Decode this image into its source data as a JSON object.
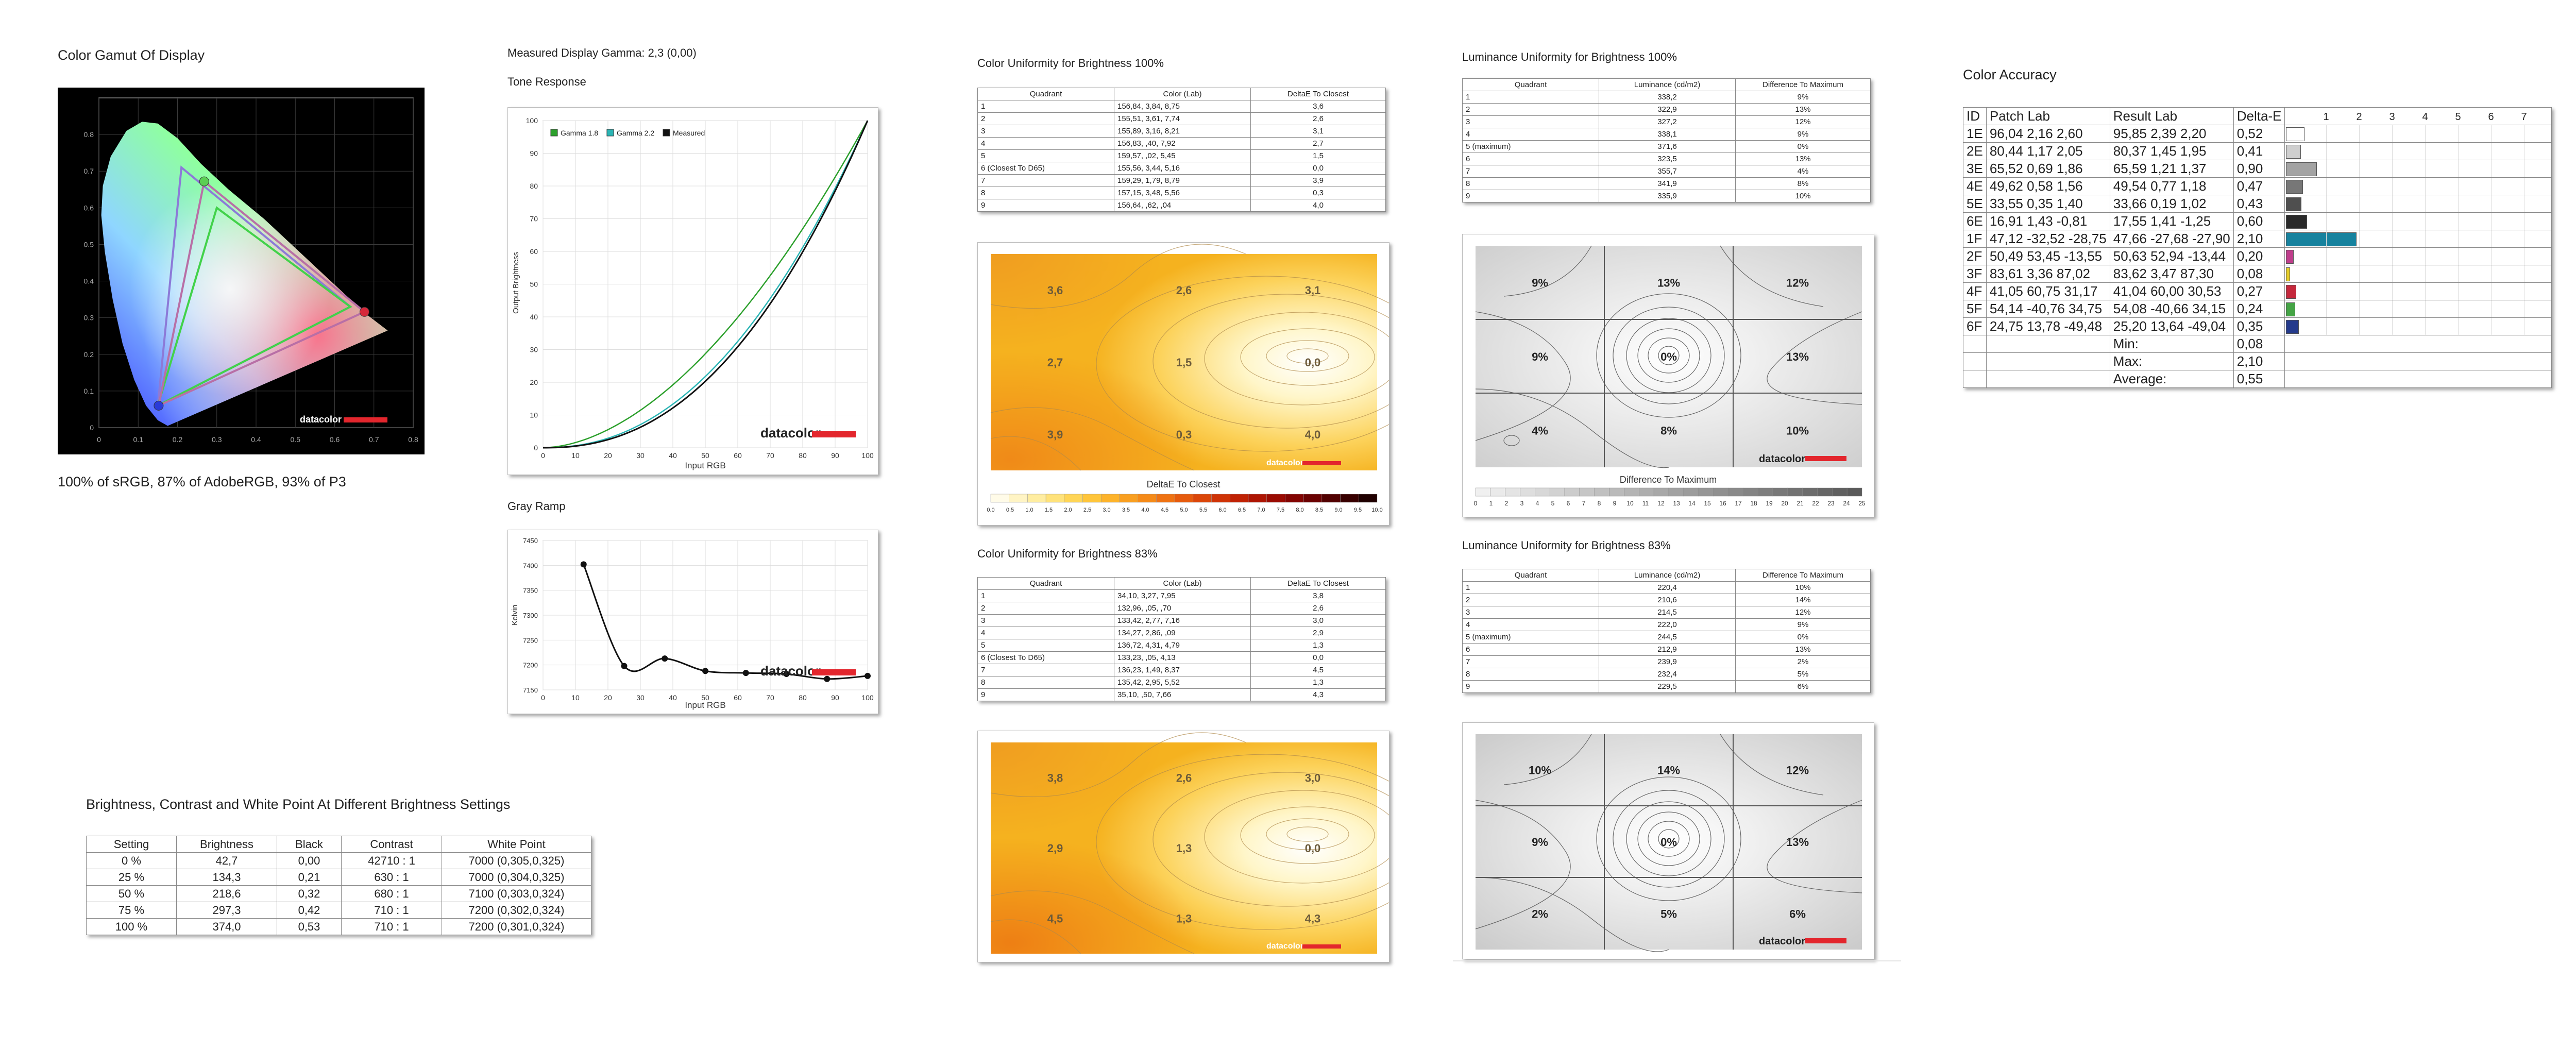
{
  "gamut": {
    "title": "Color Gamut Of Display",
    "summary": "100% of sRGB, 87% of AdobeRGB, 93% of P3",
    "x_ticks": [
      "0",
      "0.1",
      "0.2",
      "0.3",
      "0.4",
      "0.5",
      "0.6",
      "0.7",
      "0.8"
    ],
    "y_ticks": [
      "0",
      "0.1",
      "0.2",
      "0.3",
      "0.4",
      "0.5",
      "0.6",
      "0.7",
      "0.8"
    ],
    "logo": "datacolor"
  },
  "gamma": {
    "title": "Measured Display Gamma: 2,3 (0,00)"
  },
  "tone": {
    "title": "Tone Response",
    "xlabel": "Input RGB",
    "ylabel": "Output Brightness",
    "legend": [
      "Gamma 1.8",
      "Gamma 2.2",
      "Measured"
    ],
    "logo": "datacolor"
  },
  "gray": {
    "title": "Gray Ramp",
    "xlabel": "Input RGB",
    "ylabel": "Kelvin",
    "logo": "datacolor"
  },
  "bct": {
    "title": "Brightness, Contrast and White Point At Different Brightness Settings",
    "headers": [
      "Setting",
      "Brightness",
      "Black",
      "Contrast",
      "White Point"
    ],
    "rows": [
      [
        "0 %",
        "42,7",
        "0,00",
        "42710 : 1",
        "7000 (0,305,0,325)"
      ],
      [
        "25 %",
        "134,3",
        "0,21",
        "630 : 1",
        "7000 (0,304,0,325)"
      ],
      [
        "50 %",
        "218,6",
        "0,32",
        "680 : 1",
        "7100 (0,303,0,324)"
      ],
      [
        "75 %",
        "297,3",
        "0,42",
        "710 : 1",
        "7200 (0,302,0,324)"
      ],
      [
        "100 %",
        "374,0",
        "0,53",
        "710 : 1",
        "7200 (0,301,0,324)"
      ]
    ]
  },
  "cu100": {
    "title": "Color Uniformity for Brightness 100%",
    "headers": [
      "Quadrant",
      "Color (Lab)",
      "DeltaE To Closest"
    ],
    "rows": [
      [
        "1",
        "156,84,  3,84,  8,75",
        "3,6"
      ],
      [
        "2",
        "155,51,  3,61,  7,74",
        "2,6"
      ],
      [
        "3",
        "155,89,  3,16,  8,21",
        "3,1"
      ],
      [
        "4",
        "156,83,  ,40,  7,92",
        "2,7"
      ],
      [
        "5",
        "159,57,  ,02,  5,45",
        "1,5"
      ],
      [
        "6 (Closest To D65)",
        "155,56,  3,44,  5,16",
        "0,0"
      ],
      [
        "7",
        "159,29,  1,79,  8,79",
        "3,9"
      ],
      [
        "8",
        "157,15,  3,48,  5,56",
        "0,3"
      ],
      [
        "9",
        "156,64,  ,62,  ,04",
        "4,0"
      ]
    ],
    "values": [
      "3,6",
      "2,6",
      "3,1",
      "2,7",
      "1,5",
      "0,0",
      "3,9",
      "0,3",
      "4,0"
    ],
    "legend_title": "DeltaE To Closest",
    "scale": [
      "0.0",
      "0.5",
      "1.0",
      "1.5",
      "2.0",
      "2.5",
      "3.0",
      "3.5",
      "4.0",
      "4.5",
      "5.0",
      "5.5",
      "6.0",
      "6.5",
      "7.0",
      "7.5",
      "8.0",
      "8.5",
      "9.0",
      "9.5",
      "10.0"
    ],
    "logo": "datacolor"
  },
  "cu83": {
    "title": "Color Uniformity for Brightness 83%",
    "headers": [
      "Quadrant",
      "Color (Lab)",
      "DeltaE To Closest"
    ],
    "rows": [
      [
        "1",
        "34,10,  3,27,  7,95",
        "3,8"
      ],
      [
        "2",
        "132,96,  ,05,  ,70",
        "2,6"
      ],
      [
        "3",
        "133,42,  2,77,  7,16",
        "3,0"
      ],
      [
        "4",
        "134,27,  2,86,  ,09",
        "2,9"
      ],
      [
        "5",
        "136,72,  4,31,  4,79",
        "1,3"
      ],
      [
        "6 (Closest To D65)",
        "133,23,  ,05,  4,13",
        "0,0"
      ],
      [
        "7",
        "136,23,  1,49,  8,37",
        "4,5"
      ],
      [
        "8",
        "135,42,  2,95,  5,52",
        "1,3"
      ],
      [
        "9",
        "35,10,  ,50,  7,66",
        "4,3"
      ]
    ],
    "values": [
      "3,8",
      "2,6",
      "3,0",
      "2,9",
      "1,3",
      "0,0",
      "4,5",
      "1,3",
      "4,3"
    ],
    "logo": "datacolor"
  },
  "lu100": {
    "title": "Luminance Uniformity for Brightness 100%",
    "headers": [
      "Quadrant",
      "Luminance (cd/m2)",
      "Difference To Maximum"
    ],
    "rows": [
      [
        "1",
        "338,2",
        "9%"
      ],
      [
        "2",
        "322,9",
        "13%"
      ],
      [
        "3",
        "327,2",
        "12%"
      ],
      [
        "4",
        "338,1",
        "9%"
      ],
      [
        "5 (maximum)",
        "371,6",
        "0%"
      ],
      [
        "6",
        "323,5",
        "13%"
      ],
      [
        "7",
        "355,7",
        "4%"
      ],
      [
        "8",
        "341,9",
        "8%"
      ],
      [
        "9",
        "335,9",
        "10%"
      ]
    ],
    "values": [
      "9%",
      "13%",
      "12%",
      "9%",
      "0%",
      "13%",
      "4%",
      "8%",
      "10%"
    ],
    "legend_title": "Difference To Maximum",
    "scale": [
      "0",
      "1",
      "2",
      "3",
      "4",
      "5",
      "6",
      "7",
      "8",
      "9",
      "10",
      "11",
      "12",
      "13",
      "14",
      "15",
      "16",
      "17",
      "18",
      "19",
      "20",
      "21",
      "22",
      "23",
      "24",
      "25"
    ],
    "logo": "datacolor"
  },
  "lu83": {
    "title": "Luminance Uniformity for Brightness 83%",
    "headers": [
      "Quadrant",
      "Luminance (cd/m2)",
      "Difference To Maximum"
    ],
    "rows": [
      [
        "1",
        "220,4",
        "10%"
      ],
      [
        "2",
        "210,6",
        "14%"
      ],
      [
        "3",
        "214,5",
        "12%"
      ],
      [
        "4",
        "222,0",
        "9%"
      ],
      [
        "5 (maximum)",
        "244,5",
        "0%"
      ],
      [
        "6",
        "212,9",
        "13%"
      ],
      [
        "7",
        "239,9",
        "2%"
      ],
      [
        "8",
        "232,4",
        "5%"
      ],
      [
        "9",
        "229,5",
        "6%"
      ]
    ],
    "values": [
      "10%",
      "14%",
      "12%",
      "9%",
      "0%",
      "13%",
      "2%",
      "5%",
      "6%"
    ],
    "logo": "datacolor"
  },
  "accuracy": {
    "title": "Color Accuracy",
    "headers": [
      "ID",
      "Patch Lab",
      "Result Lab",
      "Delta-E"
    ],
    "scale": [
      "1",
      "2",
      "3",
      "4",
      "5",
      "6",
      "7"
    ],
    "rows": [
      {
        "id": "1E",
        "patch": "96,04  2,16  2,60",
        "result": "95,85  2,39  2,20",
        "de": "0,52",
        "color": "#ffffff"
      },
      {
        "id": "2E",
        "patch": "80,44  1,17  2,05",
        "result": "80,37  1,45  1,95",
        "de": "0,41",
        "color": "#cfcfcf"
      },
      {
        "id": "3E",
        "patch": "65,52  0,69  1,86",
        "result": "65,59  1,21  1,37",
        "de": "0,90",
        "color": "#a3a3a3"
      },
      {
        "id": "4E",
        "patch": "49,62  0,58  1,56",
        "result": "49,54  0,77  1,18",
        "de": "0,47",
        "color": "#777777"
      },
      {
        "id": "5E",
        "patch": "33,55  0,35  1,40",
        "result": "33,66  0,19  1,02",
        "de": "0,43",
        "color": "#4f4f4f"
      },
      {
        "id": "6E",
        "patch": "16,91  1,43 -0,81",
        "result": "17,55  1,41 -1,25",
        "de": "0,60",
        "color": "#2a2a2a"
      },
      {
        "id": "1F",
        "patch": "47,12 -32,52 -28,75",
        "result": "47,66 -27,68 -27,90",
        "de": "2,10",
        "color": "#16829e"
      },
      {
        "id": "2F",
        "patch": "50,49  53,45 -13,55",
        "result": "50,63  52,94 -13,44",
        "de": "0,20",
        "color": "#c03d8c"
      },
      {
        "id": "3F",
        "patch": "83,61  3,36  87,02",
        "result": "83,62  3,47  87,30",
        "de": "0,08",
        "color": "#e8cf28"
      },
      {
        "id": "4F",
        "patch": "41,05  60,75  31,17",
        "result": "41,04  60,00  30,53",
        "de": "0,27",
        "color": "#c5283c"
      },
      {
        "id": "5F",
        "patch": "54,14 -40,76  34,75",
        "result": "54,08 -40,66  34,15",
        "de": "0,24",
        "color": "#44a445"
      },
      {
        "id": "6F",
        "patch": "24,75  13,78 -49,48",
        "result": "25,20  13,64 -49,04",
        "de": "0,35",
        "color": "#243a8c"
      }
    ],
    "min_label": "Min:",
    "min": "0,08",
    "max_label": "Max:",
    "max": "2,10",
    "avg_label": "Average:",
    "avg": "0,55"
  },
  "chart_data": [
    {
      "type": "scatter",
      "name_ref": "gamut",
      "title": "Color Gamut Of Display",
      "xlim": [
        0,
        0.8
      ],
      "ylim": [
        0,
        0.9
      ],
      "display_triangle": [
        [
          0.676,
          0.316
        ],
        [
          0.268,
          0.672
        ],
        [
          0.152,
          0.06
        ]
      ],
      "srgb_triangle": [
        [
          0.64,
          0.33
        ],
        [
          0.3,
          0.6
        ],
        [
          0.15,
          0.06
        ]
      ],
      "adobergb_triangle": [
        [
          0.64,
          0.33
        ],
        [
          0.21,
          0.71
        ],
        [
          0.15,
          0.06
        ]
      ],
      "white_point": [
        0.3127,
        0.329
      ]
    },
    {
      "type": "line",
      "name_ref": "tone",
      "title": "Tone Response",
      "xlabel": "Input RGB",
      "ylabel": "Output Brightness",
      "xlim": [
        0,
        100
      ],
      "ylim": [
        0,
        100
      ],
      "x_ticks": [
        0,
        10,
        20,
        30,
        40,
        50,
        60,
        70,
        80,
        90,
        100
      ],
      "y_ticks": [
        0,
        10,
        20,
        30,
        40,
        50,
        60,
        70,
        80,
        90,
        100
      ],
      "series": [
        {
          "name": "Gamma 1.8",
          "gamma": 1.8,
          "color": "#2ca02c"
        },
        {
          "name": "Gamma 2.2",
          "gamma": 2.2,
          "color": "#2ab5b5"
        },
        {
          "name": "Measured",
          "gamma": 2.3,
          "color": "#111111"
        }
      ]
    },
    {
      "type": "line",
      "name_ref": "gray",
      "title": "Gray Ramp",
      "xlabel": "Input RGB",
      "ylabel": "Kelvin",
      "xlim": [
        0,
        100
      ],
      "ylim": [
        7150,
        7450
      ],
      "x_ticks": [
        0,
        10,
        20,
        30,
        40,
        50,
        60,
        70,
        80,
        90,
        100
      ],
      "y_ticks": [
        7150,
        7200,
        7250,
        7300,
        7350,
        7400,
        7450
      ],
      "x": [
        12.5,
        25,
        37.5,
        50,
        62.5,
        75,
        87.5,
        100
      ],
      "y": [
        7402,
        7198,
        7213,
        7188,
        7184,
        7182,
        7172,
        7178
      ]
    }
  ]
}
